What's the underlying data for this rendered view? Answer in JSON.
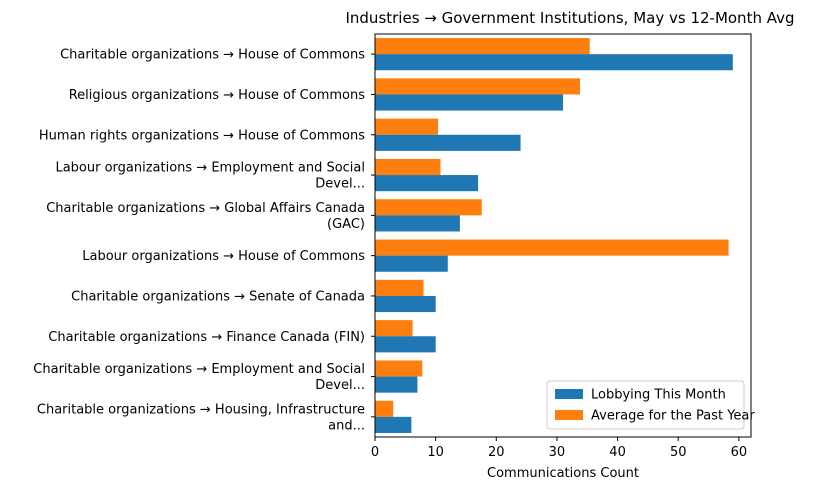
{
  "chart_data": {
    "type": "bar",
    "orientation": "horizontal",
    "title": "Industries → Government Institutions, May vs 12-Month Avg",
    "xlabel": "Communications Count",
    "ylabel": "",
    "xlim": [
      0,
      62
    ],
    "xticks": [
      0,
      10,
      20,
      30,
      40,
      50,
      60
    ],
    "grid": false,
    "legend_position": "bottom-right",
    "categories": [
      [
        "Charitable organizations → House of Commons"
      ],
      [
        "Religious organizations → House of Commons"
      ],
      [
        "Human rights organizations → House of Commons"
      ],
      [
        "Labour organizations → Employment and Social",
        "Devel..."
      ],
      [
        "Charitable organizations → Global Affairs Canada",
        "(GAC)"
      ],
      [
        "Labour organizations → House of Commons"
      ],
      [
        "Charitable organizations → Senate of Canada"
      ],
      [
        "Charitable organizations → Finance Canada (FIN)"
      ],
      [
        "Charitable organizations → Employment and Social",
        "Devel..."
      ],
      [
        "Charitable organizations → Housing, Infrastructure",
        "and..."
      ]
    ],
    "series": [
      {
        "name": "Lobbying This Month",
        "color": "#1f77b4",
        "values": [
          59,
          31,
          24,
          17,
          14,
          12,
          10,
          10,
          7,
          6
        ]
      },
      {
        "name": "Average for the Past Year",
        "color": "#ff7f0e",
        "values": [
          35.4,
          33.8,
          10.4,
          10.8,
          17.6,
          58.3,
          8.0,
          6.2,
          7.8,
          3.0
        ]
      }
    ]
  }
}
